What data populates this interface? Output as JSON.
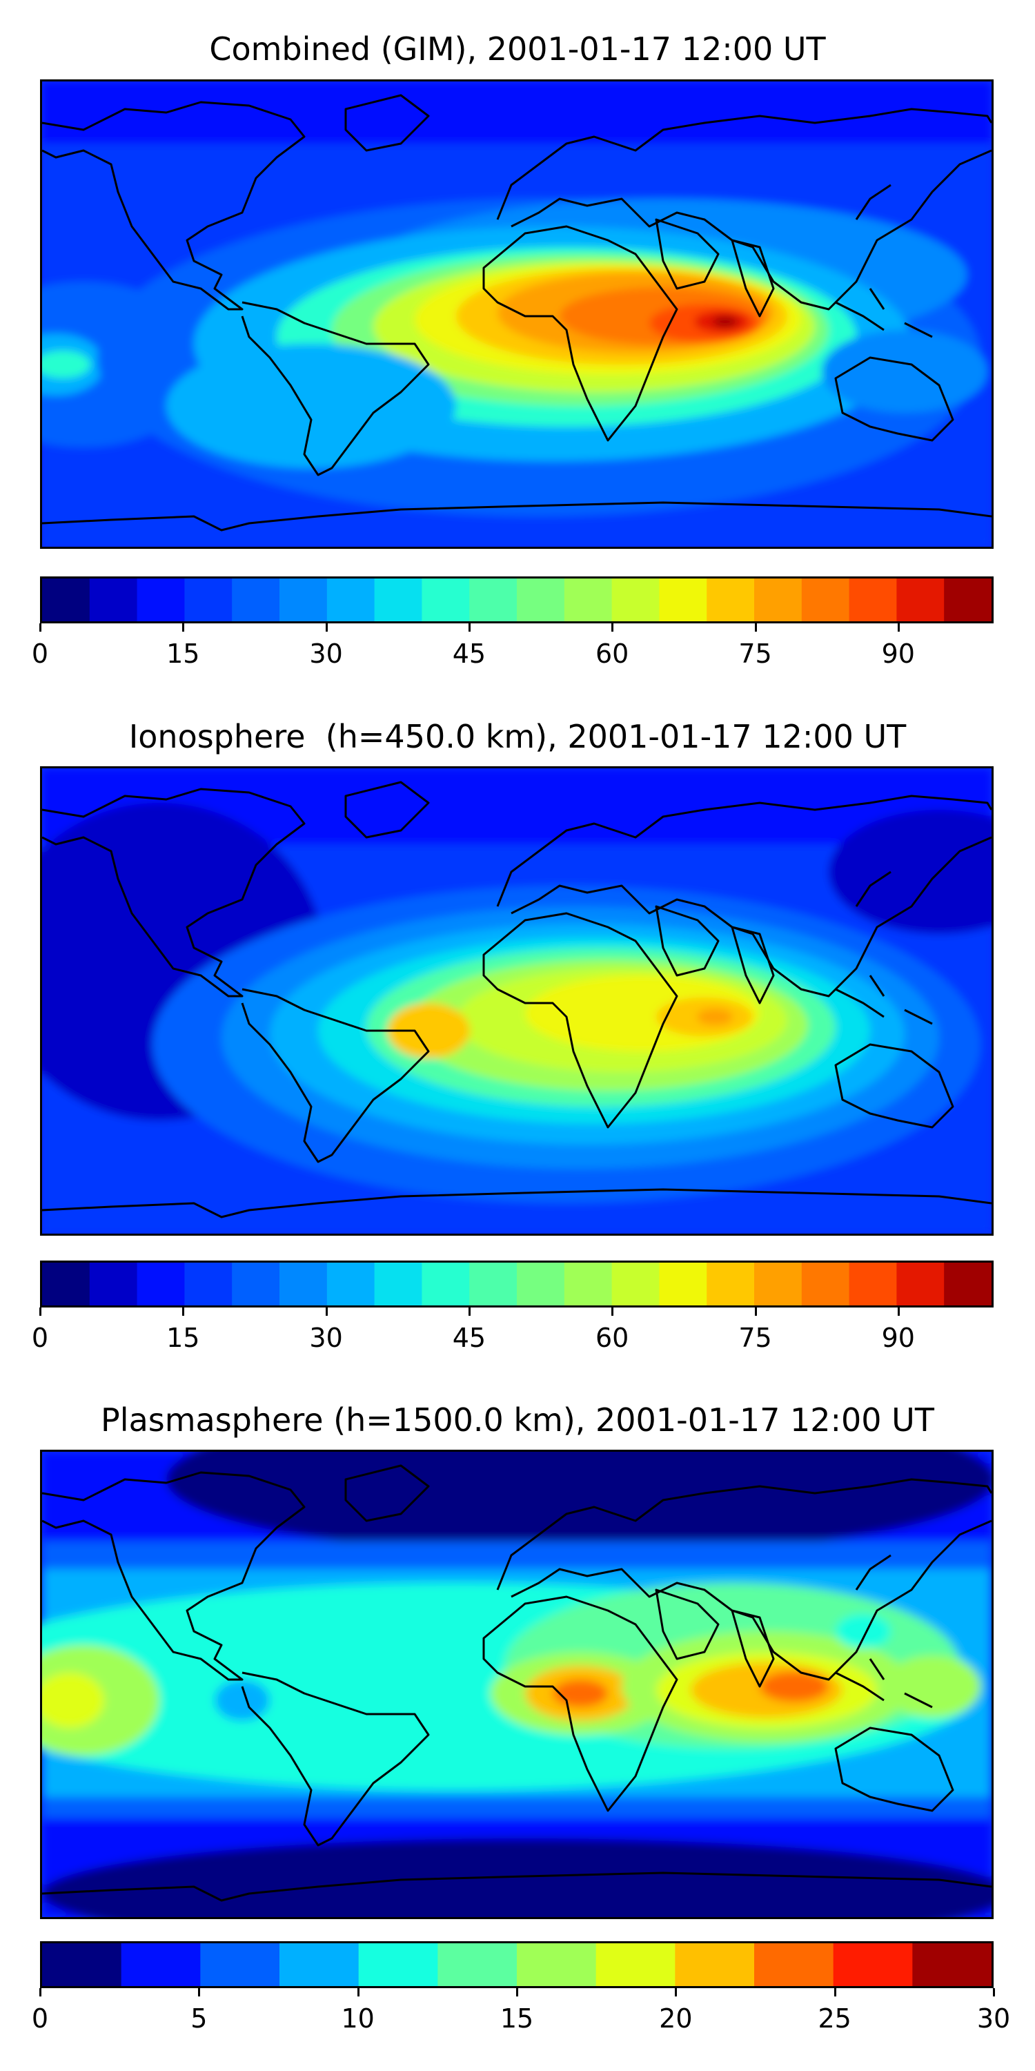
{
  "figure": {
    "panels": [
      {
        "id": "combined",
        "title": "Combined (GIM), 2001-01-17 12:00 UT",
        "colorbar": {
          "min": 0,
          "max": 100,
          "levels": 20,
          "ticks": [
            0,
            15,
            30,
            45,
            60,
            75,
            90
          ],
          "tick_labels": [
            "0",
            "15",
            "30",
            "45",
            "60",
            "75",
            "90"
          ]
        }
      },
      {
        "id": "ionosphere",
        "title": "Ionosphere  (h=450.0 km), 2001-01-17 12:00 UT",
        "colorbar": {
          "min": 0,
          "max": 100,
          "levels": 20,
          "ticks": [
            0,
            15,
            30,
            45,
            60,
            75,
            90
          ],
          "tick_labels": [
            "0",
            "15",
            "30",
            "45",
            "60",
            "75",
            "90"
          ]
        }
      },
      {
        "id": "plasmasphere",
        "title": "Plasmasphere (h=1500.0 km), 2001-01-17 12:00 UT",
        "colorbar": {
          "min": 0,
          "max": 30,
          "levels": 12,
          "ticks": [
            0,
            5,
            10,
            15,
            20,
            25,
            30
          ],
          "tick_labels": [
            "0",
            "5",
            "10",
            "15",
            "20",
            "25",
            "30"
          ]
        }
      }
    ]
  },
  "chart_data": [
    {
      "type": "heatmap",
      "title": "Combined (GIM), 2001-01-17 12:00 UT",
      "colormap": "jet",
      "zlim": [
        0,
        100
      ],
      "colorbar_ticks": [
        0,
        15,
        30,
        45,
        60,
        75,
        90
      ],
      "background_level": 10,
      "features": [
        {
          "name": "equatorial-anomaly-peak-indian-ocean",
          "value": 95
        },
        {
          "name": "africa-maximum",
          "value": 80
        },
        {
          "name": "east-atlantic-crest",
          "value": 65
        }
      ]
    },
    {
      "type": "heatmap",
      "title": "Ionosphere  (h=450.0 km), 2001-01-17 12:00 UT",
      "colormap": "jet",
      "zlim": [
        0,
        100
      ],
      "colorbar_ticks": [
        0,
        15,
        30,
        45,
        60,
        75,
        90
      ],
      "background_level": 8,
      "features": [
        {
          "name": "indian-ocean-maximum",
          "value": 70
        },
        {
          "name": "africa-maximum",
          "value": 60
        }
      ]
    },
    {
      "type": "heatmap",
      "title": "Plasmasphere (h=1500.0 km), 2001-01-17 12:00 UT",
      "colormap": "jet",
      "zlim": [
        0,
        30
      ],
      "colorbar_ticks": [
        0,
        5,
        10,
        15,
        20,
        25,
        30
      ],
      "background_level": 5,
      "features": [
        {
          "name": "southeast-asia-maximum",
          "value": 25
        },
        {
          "name": "west-africa-maximum",
          "value": 22
        },
        {
          "name": "pacific-maximum",
          "value": 17
        }
      ]
    }
  ],
  "palette": {
    "c20": [
      "#000080",
      "#0000c8",
      "#0010ff",
      "#0038ff",
      "#0060ff",
      "#0088ff",
      "#00b0ff",
      "#06e0f0",
      "#26ffd0",
      "#4dffaa",
      "#76ff80",
      "#a0ff56",
      "#c8ff2d",
      "#f0f808",
      "#ffc800",
      "#ffa000",
      "#ff7800",
      "#ff4c00",
      "#e41800",
      "#a00000"
    ],
    "c12": [
      "#000080",
      "#0010ff",
      "#0060ff",
      "#00b0ff",
      "#16ffe0",
      "#5cffa0",
      "#a0ff56",
      "#e0ff16",
      "#ffc000",
      "#ff6a00",
      "#ff1c00",
      "#a00000"
    ],
    "land_outline": "#000000"
  }
}
